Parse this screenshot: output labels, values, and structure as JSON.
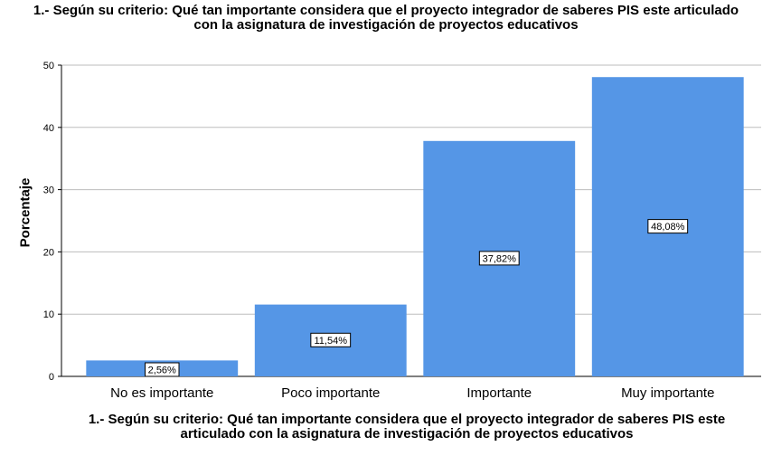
{
  "chart_data": {
    "type": "bar",
    "title_lines": [
      "1.- Según su criterio: Qué tan importante considera que el proyecto integrador de saberes PIS  este articulado",
      "con la asignatura de  investigación de proyectos educativos"
    ],
    "xlabel_lines": [
      "1.- Según su criterio: Qué tan importante considera que el proyecto integrador de saberes PIS  este",
      "articulado con la asignatura de  investigación de proyectos educativos"
    ],
    "ylabel": "Porcentaje",
    "categories": [
      "No es importante",
      "Poco importante",
      "Importante",
      "Muy importante"
    ],
    "values": [
      2.56,
      11.54,
      37.82,
      48.08
    ],
    "data_labels": [
      "2,56%",
      "11,54%",
      "37,82%",
      "48,08%"
    ],
    "ylim": [
      0,
      50
    ],
    "yticks": [
      0,
      10,
      20,
      30,
      40,
      50
    ],
    "grid": true,
    "bar_color": "#5596e6"
  }
}
